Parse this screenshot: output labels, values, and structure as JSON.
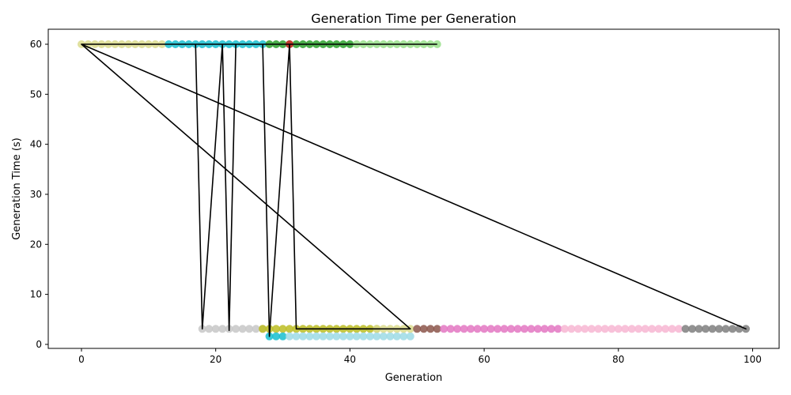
{
  "chart_data": {
    "type": "scatter",
    "title": "Generation Time per Generation",
    "xlabel": "Generation",
    "ylabel": "Generation Time (s)",
    "xlim": [
      -4.95,
      103.95
    ],
    "ylim": [
      -0.8,
      63.0
    ],
    "xticks": [
      0,
      20,
      40,
      60,
      80,
      100
    ],
    "yticks": [
      0,
      10,
      20,
      30,
      40,
      50,
      60
    ],
    "grid": false,
    "point_series": [
      {
        "color": "#dbdb8d",
        "x_start": 0,
        "x_end": 12,
        "y": 60.0
      },
      {
        "color": "#17becf",
        "x_start": 13,
        "x_end": 27,
        "y": 60.0
      },
      {
        "color": "#2ca02c",
        "x_start": 28,
        "x_end": 40,
        "y": 60.0
      },
      {
        "color": "#d62728",
        "x_start": 31,
        "x_end": 31,
        "y": 60.0
      },
      {
        "color": "#98df8a",
        "x_start": 41,
        "x_end": 53,
        "y": 60.0
      },
      {
        "color": "#c7c7c7",
        "x_start": 18,
        "x_end": 27,
        "y": 3.1
      },
      {
        "color": "#bcbd22",
        "x_start": 27,
        "x_end": 44,
        "y": 3.1
      },
      {
        "color": "#17becf",
        "x_start": 28,
        "x_end": 30,
        "y": 1.6
      },
      {
        "color": "#9edae5",
        "x_start": 31,
        "x_end": 49,
        "y": 1.6
      },
      {
        "color": "#dbdb8d",
        "x_start": 44,
        "x_end": 49,
        "y": 3.1
      },
      {
        "color": "#8c564b",
        "x_start": 50,
        "x_end": 53,
        "y": 3.1
      },
      {
        "color": "#e377c2",
        "x_start": 54,
        "x_end": 71,
        "y": 3.1
      },
      {
        "color": "#f7b6d2",
        "x_start": 72,
        "x_end": 89,
        "y": 3.1
      },
      {
        "color": "#7f7f7f",
        "x_start": 90,
        "x_end": 99,
        "y": 3.1
      }
    ],
    "line": {
      "color": "#000000",
      "x": [
        0,
        17,
        18,
        21,
        22,
        23,
        27,
        28,
        31,
        32,
        49,
        0,
        99,
        0,
        53
      ],
      "y": [
        60.0,
        60.0,
        3.1,
        60.0,
        2.8,
        60.0,
        60.0,
        1.6,
        60.0,
        3.1,
        3.1,
        60.0,
        3.1,
        60.0,
        60.0
      ]
    }
  }
}
